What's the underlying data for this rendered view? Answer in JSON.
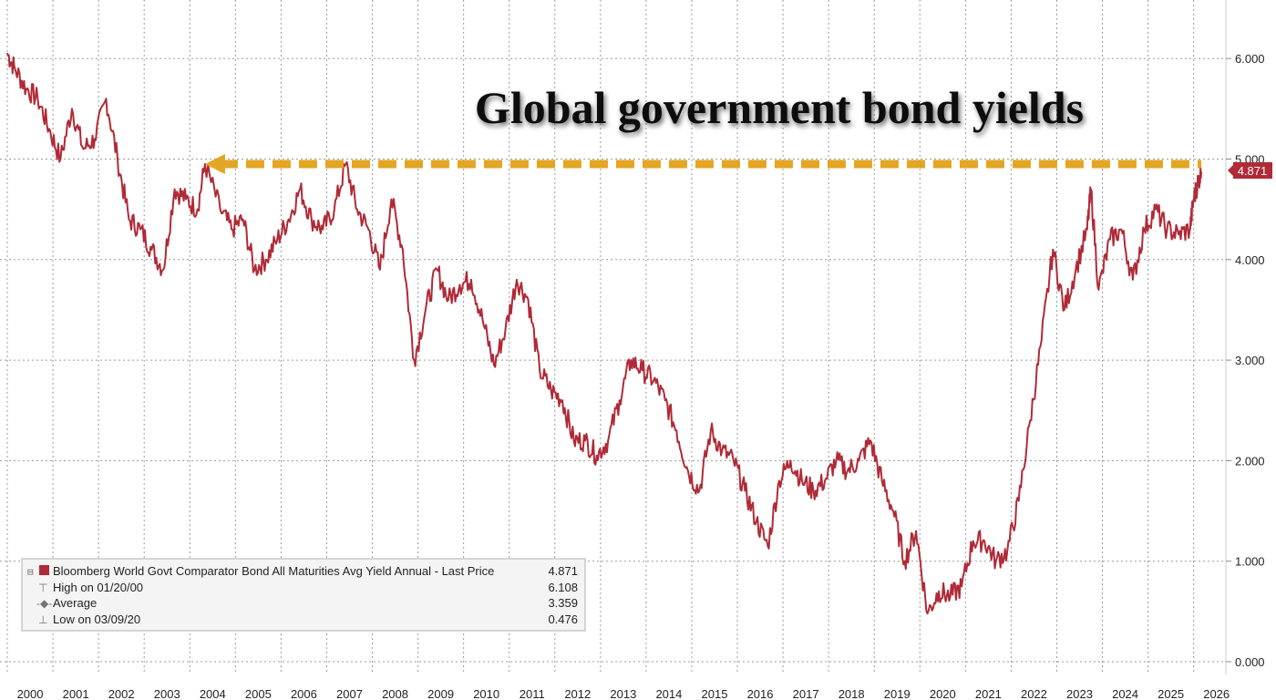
{
  "chart_data": {
    "type": "line",
    "title": "Global government bond yields",
    "x": [
      "2000",
      "2001",
      "2002",
      "2003",
      "2004",
      "2005",
      "2006",
      "2007",
      "2008",
      "2009",
      "2010",
      "2011",
      "2012",
      "2013",
      "2014",
      "2015",
      "2016",
      "2017",
      "2018",
      "2019",
      "2020",
      "2021",
      "2022",
      "2023",
      "2024",
      "2025",
      "2026"
    ],
    "xlim": [
      "2000-01",
      "2026-03"
    ],
    "ylim": [
      0,
      6.5
    ],
    "y_ticks": [
      "0.000",
      "1.000",
      "2.000",
      "3.000",
      "4.000",
      "5.000",
      "6.000"
    ],
    "grid": true,
    "y_axis_side": "right",
    "series": [
      {
        "name": "Bloomberg World Govt Comparator Bond All Maturities Avg Yield Annual - Last Price",
        "color": "#b02a37",
        "points": [
          [
            "2000-01",
            6.05
          ],
          [
            "2000-03",
            5.9
          ],
          [
            "2000-06",
            5.7
          ],
          [
            "2000-09",
            5.6
          ],
          [
            "2000-12",
            5.3
          ],
          [
            "2001-03",
            5.0
          ],
          [
            "2001-06",
            5.5
          ],
          [
            "2001-09",
            5.1
          ],
          [
            "2001-12",
            5.2
          ],
          [
            "2002-03",
            5.6
          ],
          [
            "2002-06",
            5.0
          ],
          [
            "2002-09",
            4.4
          ],
          [
            "2002-12",
            4.3
          ],
          [
            "2003-03",
            4.1
          ],
          [
            "2003-06",
            3.9
          ],
          [
            "2003-09",
            4.7
          ],
          [
            "2003-12",
            4.6
          ],
          [
            "2004-03",
            4.5
          ],
          [
            "2004-05",
            4.95
          ],
          [
            "2004-09",
            4.5
          ],
          [
            "2004-12",
            4.3
          ],
          [
            "2005-03",
            4.4
          ],
          [
            "2005-06",
            3.9
          ],
          [
            "2005-09",
            4.0
          ],
          [
            "2005-12",
            4.2
          ],
          [
            "2006-03",
            4.4
          ],
          [
            "2006-06",
            4.7
          ],
          [
            "2006-09",
            4.4
          ],
          [
            "2006-12",
            4.3
          ],
          [
            "2007-03",
            4.5
          ],
          [
            "2007-06",
            4.95
          ],
          [
            "2007-09",
            4.5
          ],
          [
            "2007-12",
            4.3
          ],
          [
            "2008-03",
            3.9
          ],
          [
            "2008-06",
            4.6
          ],
          [
            "2008-09",
            4.1
          ],
          [
            "2008-12",
            3.0
          ],
          [
            "2009-03",
            3.5
          ],
          [
            "2009-06",
            3.9
          ],
          [
            "2009-09",
            3.6
          ],
          [
            "2009-12",
            3.75
          ],
          [
            "2010-03",
            3.8
          ],
          [
            "2010-06",
            3.4
          ],
          [
            "2010-09",
            2.95
          ],
          [
            "2010-12",
            3.3
          ],
          [
            "2011-03",
            3.8
          ],
          [
            "2011-06",
            3.6
          ],
          [
            "2011-09",
            2.9
          ],
          [
            "2011-12",
            2.7
          ],
          [
            "2012-03",
            2.6
          ],
          [
            "2012-06",
            2.2
          ],
          [
            "2012-09",
            2.2
          ],
          [
            "2012-12",
            2.05
          ],
          [
            "2013-03",
            2.2
          ],
          [
            "2013-06",
            2.6
          ],
          [
            "2013-09",
            3.0
          ],
          [
            "2013-12",
            2.9
          ],
          [
            "2014-03",
            2.8
          ],
          [
            "2014-06",
            2.6
          ],
          [
            "2014-09",
            2.3
          ],
          [
            "2014-12",
            1.9
          ],
          [
            "2015-03",
            1.7
          ],
          [
            "2015-06",
            2.3
          ],
          [
            "2015-09",
            2.1
          ],
          [
            "2015-12",
            2.0
          ],
          [
            "2016-03",
            1.7
          ],
          [
            "2016-06",
            1.4
          ],
          [
            "2016-09",
            1.15
          ],
          [
            "2016-12",
            1.8
          ],
          [
            "2017-03",
            2.0
          ],
          [
            "2017-06",
            1.8
          ],
          [
            "2017-09",
            1.7
          ],
          [
            "2017-12",
            1.8
          ],
          [
            "2018-03",
            2.0
          ],
          [
            "2018-06",
            1.9
          ],
          [
            "2018-09",
            2.0
          ],
          [
            "2018-12",
            2.2
          ],
          [
            "2019-03",
            1.8
          ],
          [
            "2019-06",
            1.5
          ],
          [
            "2019-09",
            1.0
          ],
          [
            "2019-12",
            1.3
          ],
          [
            "2020-03",
            0.48
          ],
          [
            "2020-06",
            0.7
          ],
          [
            "2020-09",
            0.65
          ],
          [
            "2020-12",
            0.75
          ],
          [
            "2021-03",
            1.2
          ],
          [
            "2021-06",
            1.2
          ],
          [
            "2021-09",
            1.0
          ],
          [
            "2021-12",
            1.1
          ],
          [
            "2022-03",
            1.6
          ],
          [
            "2022-06",
            2.4
          ],
          [
            "2022-09",
            3.2
          ],
          [
            "2022-12",
            4.1
          ],
          [
            "2023-03",
            3.5
          ],
          [
            "2023-06",
            3.9
          ],
          [
            "2023-09",
            4.3
          ],
          [
            "2023-10",
            4.7
          ],
          [
            "2023-12",
            3.7
          ],
          [
            "2024-03",
            4.2
          ],
          [
            "2024-06",
            4.3
          ],
          [
            "2024-09",
            3.8
          ],
          [
            "2024-12",
            4.3
          ],
          [
            "2025-03",
            4.5
          ],
          [
            "2025-06",
            4.3
          ],
          [
            "2025-09",
            4.25
          ],
          [
            "2025-12",
            4.3
          ],
          [
            "2026-01",
            4.6
          ],
          [
            "2026-02",
            4.75
          ],
          [
            "2026-03",
            4.871
          ]
        ]
      }
    ],
    "reference_line": {
      "value": 4.95,
      "from": "2004-05",
      "to": "2026-03",
      "style": "dashed arrow",
      "color": "#e3a524"
    },
    "last_price": "4.871",
    "legend": {
      "placement": "bottom-left",
      "rows": [
        {
          "label": "Bloomberg World Govt Comparator Bond All Maturities Avg Yield Annual - Last Price",
          "value": "4.871"
        },
        {
          "label": "High on 01/20/00",
          "value": "6.108"
        },
        {
          "label": "Average",
          "value": "3.359"
        },
        {
          "label": "Low on 03/09/20",
          "value": "0.476"
        }
      ]
    }
  }
}
